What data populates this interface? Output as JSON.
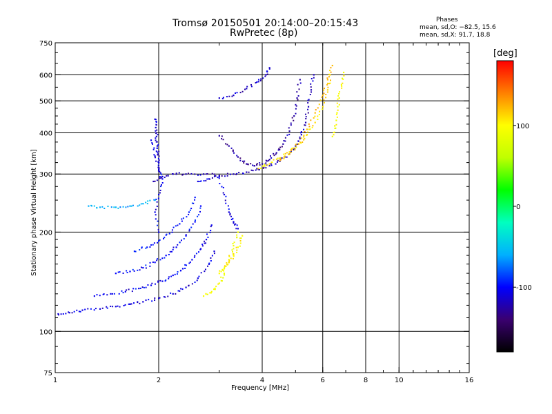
{
  "chart_data": {
    "type": "scatter",
    "title": "Tromsø 20150501 20:14:00–20:15:43",
    "subtitle": "RwPretec (8p)",
    "annotations": [
      "Phases",
      "mean, sd,O: −82.5, 15.6",
      "mean, sd,X:  91.7, 18.8"
    ],
    "xlabel": "Frequency [MHz]",
    "ylabel": "Stationary phase Virtual Height [km]",
    "x_scale": "log",
    "y_scale": "log",
    "xlim": [
      1,
      16
    ],
    "ylim": [
      75,
      750
    ],
    "x_ticks": [
      {
        "v": 1,
        "label": "1"
      },
      {
        "v": 2,
        "label": "2"
      },
      {
        "v": 4,
        "label": "4"
      },
      {
        "v": 6,
        "label": "6"
      },
      {
        "v": 8,
        "label": "8"
      },
      {
        "v": 10,
        "label": "10"
      },
      {
        "v": 16,
        "label": "16"
      }
    ],
    "y_ticks": [
      {
        "v": 75,
        "label": "75"
      },
      {
        "v": 100,
        "label": "100"
      },
      {
        "v": 200,
        "label": "200"
      },
      {
        "v": 300,
        "label": "300"
      },
      {
        "v": 400,
        "label": "400"
      },
      {
        "v": 500,
        "label": "500"
      },
      {
        "v": 600,
        "label": "600"
      },
      {
        "v": 750,
        "label": "750"
      }
    ],
    "x_grid": [
      2,
      4,
      6,
      8,
      10
    ],
    "y_grid": [
      100,
      200,
      300,
      400,
      500,
      600
    ],
    "grid": true,
    "colorbar": {
      "label": "[deg]",
      "range": [
        -180,
        180
      ],
      "ticks": [
        {
          "v": 100,
          "label": "100"
        },
        {
          "v": 0,
          "label": "0"
        },
        {
          "v": -100,
          "label": "-100"
        }
      ],
      "colors": [
        "#000000",
        "#3a0070",
        "#0000ff",
        "#00b0ff",
        "#00ffc0",
        "#00ff00",
        "#c0ff00",
        "#ffff00",
        "#ff8000",
        "#ff0000"
      ]
    },
    "traces": [
      {
        "name": "",
        "phase": -110,
        "points": [
          [
            1.02,
            113
          ],
          [
            1.1,
            114
          ],
          [
            1.2,
            116
          ],
          [
            1.35,
            117
          ],
          [
            1.5,
            119
          ],
          [
            1.65,
            121
          ],
          [
            1.8,
            123
          ],
          [
            2.0,
            126
          ],
          [
            2.2,
            130
          ],
          [
            2.4,
            136
          ],
          [
            2.6,
            145
          ],
          [
            2.8,
            160
          ],
          [
            2.9,
            175
          ]
        ]
      },
      {
        "name": "",
        "phase": -105,
        "points": [
          [
            1.3,
            128
          ],
          [
            1.45,
            130
          ],
          [
            1.6,
            132
          ],
          [
            1.75,
            135
          ],
          [
            1.9,
            138
          ],
          [
            2.05,
            142
          ],
          [
            2.2,
            148
          ],
          [
            2.35,
            155
          ],
          [
            2.5,
            165
          ],
          [
            2.65,
            178
          ],
          [
            2.75,
            190
          ],
          [
            2.85,
            210
          ]
        ]
      },
      {
        "name": "",
        "phase": -100,
        "points": [
          [
            1.5,
            150
          ],
          [
            1.65,
            152
          ],
          [
            1.8,
            156
          ],
          [
            1.95,
            162
          ],
          [
            2.1,
            170
          ],
          [
            2.25,
            180
          ],
          [
            2.4,
            195
          ],
          [
            2.55,
            215
          ],
          [
            2.65,
            240
          ]
        ]
      },
      {
        "name": "",
        "phase": -95,
        "points": [
          [
            1.7,
            175
          ],
          [
            1.85,
            180
          ],
          [
            2.0,
            188
          ],
          [
            2.15,
            198
          ],
          [
            2.3,
            212
          ],
          [
            2.45,
            230
          ],
          [
            2.55,
            255
          ]
        ]
      },
      {
        "name": "",
        "phase": -120,
        "points": [
          [
            1.93,
            285
          ],
          [
            2.05,
            295
          ],
          [
            2.2,
            300
          ],
          [
            2.4,
            300
          ],
          [
            2.7,
            300
          ],
          [
            3.0,
            297
          ],
          [
            3.3,
            300
          ],
          [
            3.6,
            304
          ],
          [
            3.9,
            310
          ],
          [
            4.2,
            318
          ],
          [
            4.5,
            328
          ],
          [
            4.8,
            345
          ],
          [
            5.0,
            365
          ],
          [
            5.2,
            395
          ],
          [
            5.35,
            430
          ],
          [
            5.45,
            480
          ],
          [
            5.55,
            540
          ],
          [
            5.65,
            600
          ]
        ]
      },
      {
        "name": "",
        "phase": -125,
        "points": [
          [
            3.0,
            392
          ],
          [
            3.2,
            365
          ],
          [
            3.4,
            338
          ],
          [
            3.6,
            322
          ],
          [
            3.8,
            318
          ],
          [
            4.0,
            322
          ],
          [
            4.2,
            332
          ],
          [
            4.4,
            348
          ],
          [
            4.6,
            370
          ],
          [
            4.8,
            405
          ],
          [
            4.95,
            450
          ],
          [
            5.05,
            510
          ],
          [
            5.15,
            580
          ]
        ]
      },
      {
        "name": "",
        "phase": -115,
        "points": [
          [
            3.0,
            510
          ],
          [
            3.3,
            520
          ],
          [
            3.6,
            545
          ],
          [
            3.9,
            572
          ],
          [
            4.1,
            600
          ],
          [
            4.2,
            630
          ]
        ]
      },
      {
        "name": "",
        "phase": -110,
        "points": [
          [
            2.6,
            285
          ],
          [
            2.8,
            290
          ],
          [
            3.0,
            295
          ],
          [
            3.1,
            260
          ],
          [
            3.2,
            230
          ],
          [
            3.3,
            215
          ],
          [
            3.4,
            205
          ]
        ]
      },
      {
        "name": "",
        "phase": -105,
        "points": [
          [
            1.9,
            380
          ],
          [
            1.95,
            340
          ],
          [
            2.0,
            310
          ],
          [
            2.05,
            290
          ],
          [
            2.0,
            260
          ],
          [
            1.95,
            230
          ],
          [
            2.0,
            200
          ]
        ]
      },
      {
        "name": "",
        "phase": 95,
        "points": [
          [
            2.7,
            128
          ],
          [
            2.85,
            132
          ],
          [
            3.0,
            140
          ],
          [
            3.1,
            150
          ],
          [
            3.2,
            165
          ],
          [
            3.3,
            182
          ],
          [
            3.4,
            200
          ]
        ]
      },
      {
        "name": "",
        "phase": 100,
        "points": [
          [
            3.0,
            150
          ],
          [
            3.1,
            155
          ],
          [
            3.2,
            162
          ],
          [
            3.3,
            170
          ],
          [
            3.4,
            180
          ],
          [
            3.5,
            195
          ]
        ]
      },
      {
        "name": "",
        "phase": 110,
        "points": [
          [
            3.9,
            312
          ],
          [
            4.2,
            322
          ],
          [
            4.5,
            335
          ],
          [
            4.8,
            350
          ],
          [
            5.1,
            370
          ],
          [
            5.4,
            395
          ],
          [
            5.7,
            430
          ],
          [
            6.0,
            480
          ],
          [
            6.2,
            540
          ],
          [
            6.3,
            600
          ]
        ]
      },
      {
        "name": "",
        "phase": 120,
        "points": [
          [
            4.5,
            330
          ],
          [
            4.8,
            345
          ],
          [
            5.1,
            370
          ],
          [
            5.4,
            410
          ],
          [
            5.7,
            460
          ],
          [
            6.0,
            520
          ],
          [
            6.2,
            580
          ],
          [
            6.4,
            640
          ]
        ]
      },
      {
        "name": "",
        "phase": 95,
        "points": [
          [
            6.4,
            390
          ],
          [
            6.5,
            420
          ],
          [
            6.6,
            460
          ],
          [
            6.7,
            510
          ],
          [
            6.8,
            560
          ],
          [
            6.9,
            610
          ]
        ]
      },
      {
        "name": "",
        "phase": -112,
        "points": [
          [
            1.95,
            440
          ],
          [
            1.96,
            415
          ],
          [
            1.97,
            390
          ],
          [
            1.98,
            365
          ],
          [
            1.99,
            345
          ],
          [
            2.0,
            325
          ],
          [
            2.01,
            305
          ]
        ]
      },
      {
        "name": "",
        "phase": -60,
        "points": [
          [
            1.25,
            240
          ],
          [
            1.35,
            238
          ],
          [
            1.5,
            238
          ],
          [
            1.65,
            240
          ],
          [
            1.8,
            244
          ],
          [
            1.95,
            250
          ]
        ]
      }
    ]
  }
}
